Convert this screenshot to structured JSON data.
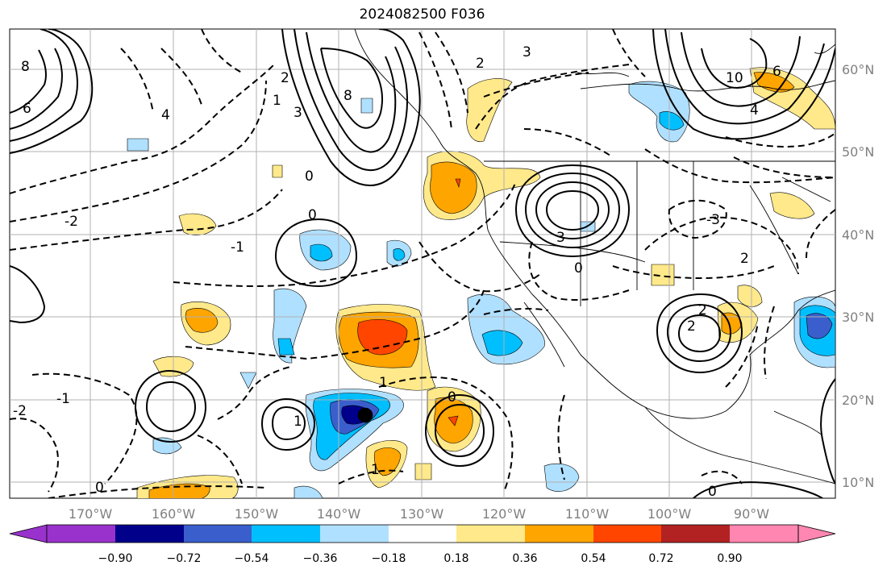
{
  "title": "2024082500 F036",
  "map": {
    "lon_labels": [
      "170°W",
      "160°W",
      "150°W",
      "140°W",
      "130°W",
      "120°W",
      "110°W",
      "100°W",
      "90°W"
    ],
    "lat_labels": [
      "60°N",
      "50°N",
      "40°N",
      "30°N",
      "20°N",
      "10°N"
    ],
    "contour_labels": [
      "8",
      "6",
      "4",
      "2",
      "10",
      "8",
      "6",
      "4",
      "3",
      "2",
      "1",
      "0",
      "-2",
      "-1",
      "3",
      "0",
      "2",
      "1",
      "0",
      "-3",
      "3",
      "2",
      "0",
      "1",
      "-1",
      "-2",
      "0",
      "1",
      "2",
      "0"
    ],
    "colors": {
      "land": "#000000",
      "grid": "#b0b0b0",
      "contour": "#000000"
    }
  },
  "colorbar": {
    "ticks": [
      "−0.90",
      "−0.72",
      "−0.54",
      "−0.36",
      "−0.18",
      "0.18",
      "0.36",
      "0.54",
      "0.72",
      "0.90"
    ],
    "colors": [
      "#9932cc",
      "#00008b",
      "#3a5fcd",
      "#00bfff",
      "#b0e0ff",
      "#ffffff",
      "#ffe98a",
      "#ffa500",
      "#ff4500",
      "#b22222",
      "#ff86b0"
    ]
  }
}
